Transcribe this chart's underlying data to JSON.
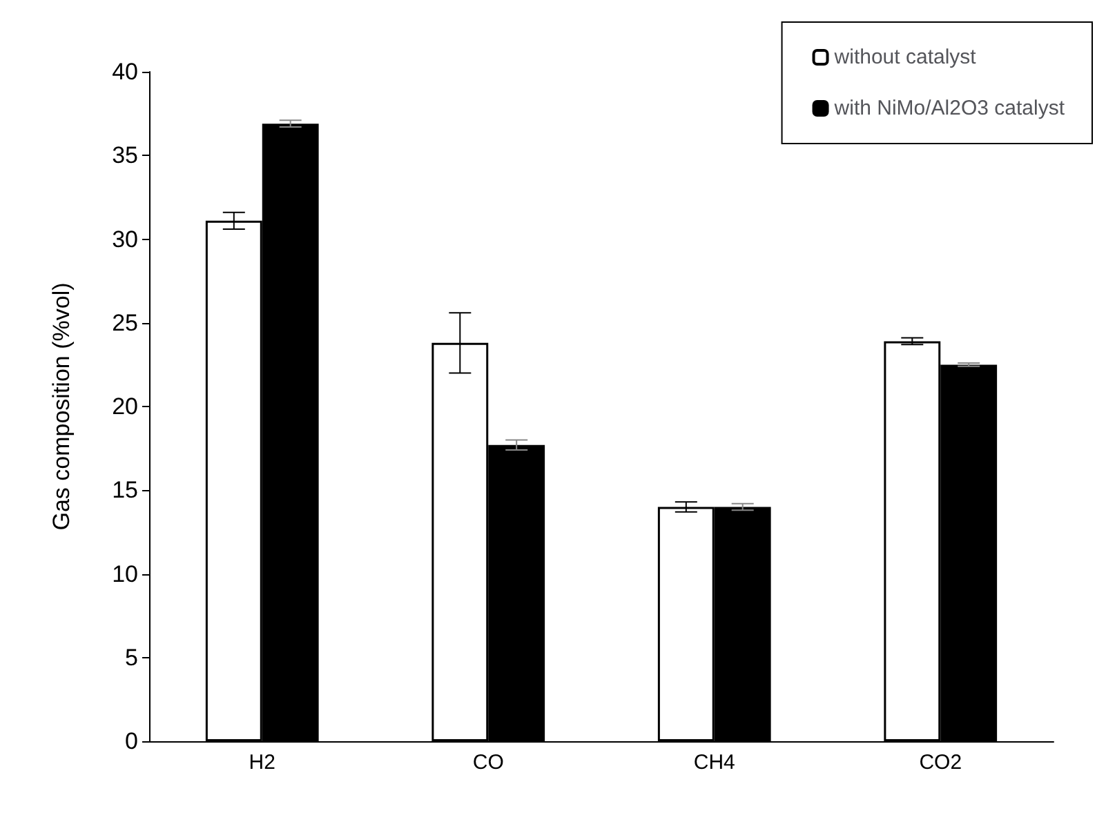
{
  "chart_data": {
    "type": "bar",
    "ylabel": "Gas composition (%vol)",
    "categories": [
      "H2",
      "CO",
      "CH4",
      "CO2"
    ],
    "series": [
      {
        "name": "without catalyst",
        "color": "#ffffff",
        "values": [
          31.1,
          23.8,
          14.0,
          23.9
        ],
        "errors": [
          0.5,
          1.8,
          0.3,
          0.2
        ]
      },
      {
        "name": "with NiMo/Al2O3 catalyst",
        "color": "#000000",
        "values": [
          36.9,
          17.7,
          14.0,
          22.5
        ],
        "errors": [
          0.2,
          0.3,
          0.2,
          0.1
        ]
      }
    ],
    "ylim": [
      0,
      40
    ],
    "yticks": [
      0,
      5,
      10,
      15,
      20,
      25,
      30,
      35,
      40
    ],
    "grid": false,
    "legend": "top right"
  }
}
